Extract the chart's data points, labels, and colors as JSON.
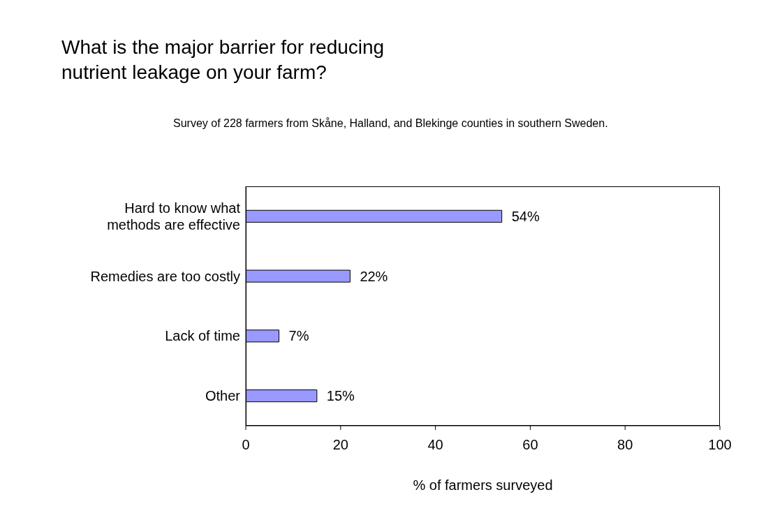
{
  "chart_data": {
    "type": "bar",
    "orientation": "horizontal",
    "title": "What is the major barrier for reducing nutrient leakage on your farm?",
    "subtitle": "Survey of 228 farmers from Skåne, Halland, and Blekinge counties in southern Sweden.",
    "xlabel": "% of farmers surveyed",
    "categories": [
      "Hard to know what methods are effective",
      "Remedies are too costly",
      "Lack of time",
      "Other"
    ],
    "values": [
      54,
      22,
      7,
      15
    ],
    "value_labels": [
      "54%",
      "22%",
      "7%",
      "15%"
    ],
    "color": "#9999ff",
    "xlim": [
      0,
      100
    ],
    "xticks": [
      0,
      20,
      40,
      60,
      80,
      100
    ]
  }
}
